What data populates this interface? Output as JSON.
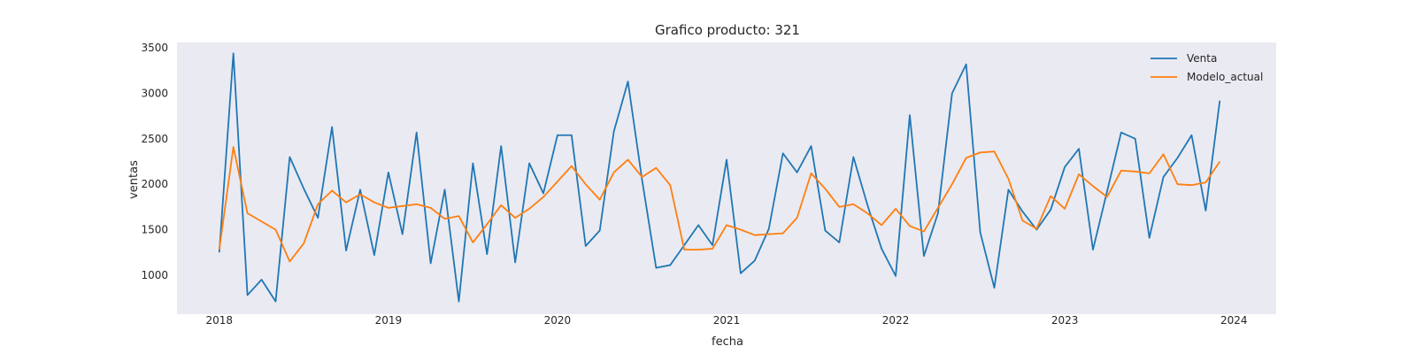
{
  "chart_data": {
    "type": "line",
    "title": "Grafico producto: 321",
    "xlabel": "fecha",
    "ylabel": "ventas",
    "grid": false,
    "legend_position": "top-right",
    "x_start": "2018-01",
    "xlim": [
      2017.75,
      2024.25
    ],
    "ylim": [
      570,
      3560
    ],
    "x_ticks": [
      {
        "value": 2018,
        "label": "2018"
      },
      {
        "value": 2019,
        "label": "2019"
      },
      {
        "value": 2020,
        "label": "2020"
      },
      {
        "value": 2021,
        "label": "2021"
      },
      {
        "value": 2022,
        "label": "2022"
      },
      {
        "value": 2023,
        "label": "2023"
      },
      {
        "value": 2024,
        "label": "2024"
      }
    ],
    "y_ticks": [
      {
        "value": 1000,
        "label": "1000"
      },
      {
        "value": 1500,
        "label": "1500"
      },
      {
        "value": 2000,
        "label": "2000"
      },
      {
        "value": 2500,
        "label": "2500"
      },
      {
        "value": 3000,
        "label": "3000"
      },
      {
        "value": 3500,
        "label": "3500"
      }
    ],
    "series": [
      {
        "name": "Venta",
        "color": "#1f77b4",
        "values": [
          1250,
          3440,
          780,
          950,
          710,
          2300,
          1950,
          1630,
          2630,
          1270,
          1940,
          1220,
          2130,
          1450,
          2570,
          1130,
          1940,
          710,
          2230,
          1230,
          2420,
          1140,
          2230,
          1900,
          2540,
          2540,
          1320,
          1490,
          2580,
          3130,
          2050,
          1080,
          1110,
          1330,
          1550,
          1330,
          2270,
          1020,
          1160,
          1510,
          2340,
          2130,
          2420,
          1490,
          1360,
          2300,
          1770,
          1290,
          990,
          2760,
          1210,
          1680,
          3000,
          3320,
          1470,
          860,
          1940,
          1700,
          1500,
          1720,
          2190,
          2390,
          1280,
          1920,
          2570,
          2500,
          1410,
          2080,
          2290,
          2540,
          1710,
          2920
        ]
      },
      {
        "name": "Modelo_actual",
        "color": "#ff7f0e",
        "values": [
          1280,
          2410,
          1680,
          1590,
          1500,
          1150,
          1350,
          1780,
          1930,
          1800,
          1890,
          1800,
          1740,
          1760,
          1780,
          1740,
          1620,
          1650,
          1360,
          1560,
          1770,
          1630,
          1730,
          1860,
          2030,
          2200,
          2000,
          1830,
          2130,
          2270,
          2080,
          2180,
          1990,
          1280,
          1280,
          1290,
          1550,
          1500,
          1440,
          1450,
          1460,
          1630,
          2120,
          1950,
          1750,
          1780,
          1680,
          1550,
          1730,
          1540,
          1480,
          1740,
          2000,
          2290,
          2350,
          2360,
          2060,
          1600,
          1510,
          1870,
          1730,
          2110,
          1980,
          1860,
          2150,
          2140,
          2120,
          2330,
          2000,
          1990,
          2020,
          2250
        ]
      }
    ]
  }
}
